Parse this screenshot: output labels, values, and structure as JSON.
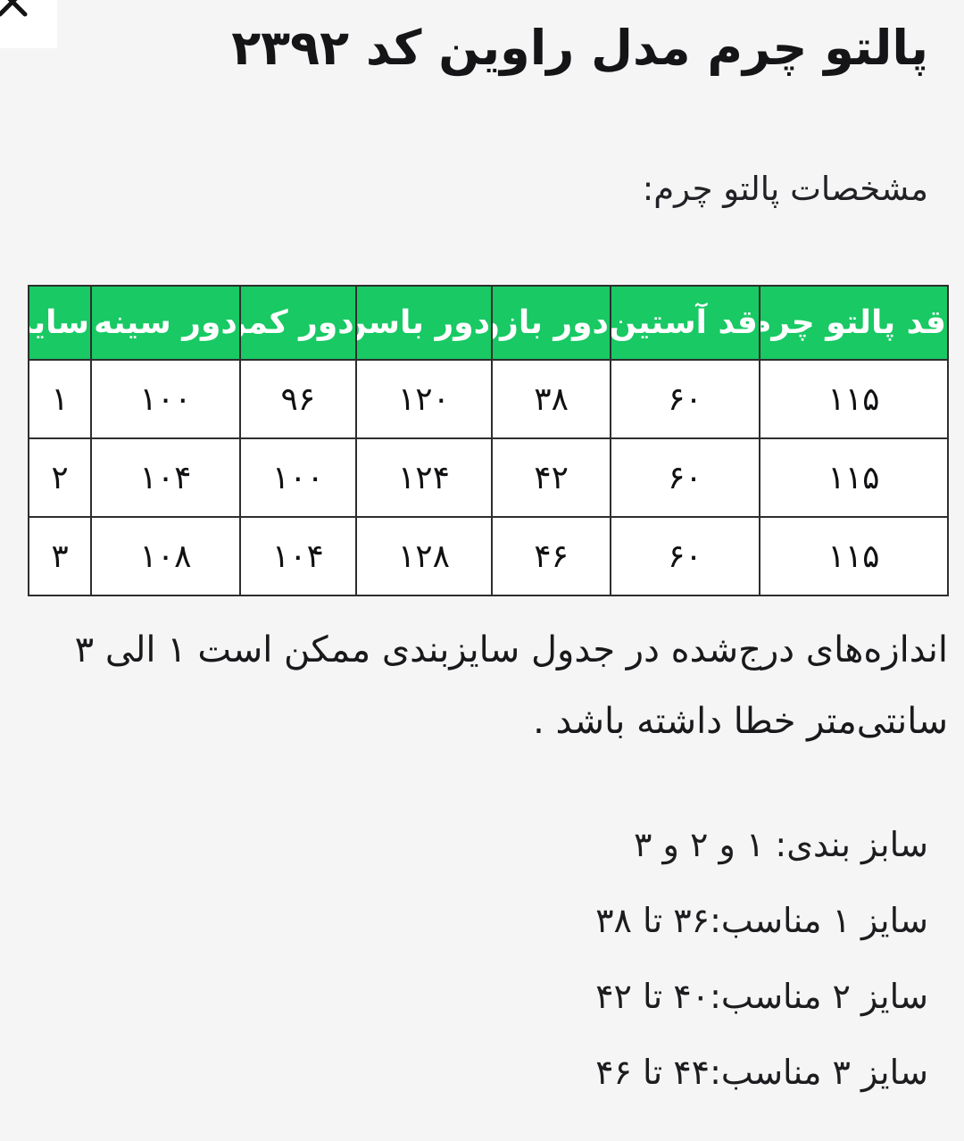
{
  "window": {
    "close_icon": "x-close"
  },
  "header": {
    "title": "پالتو چرم مدل راوین کد ۲۳۹۲"
  },
  "content": {
    "subtitle": "مشخصات پالتو چرم:",
    "note_lines": [
      "اندازه‌های درج‌شده در جدول سایزبندی ممکن است ۱ الی ۳",
      "سانتی‌متر خطا داشته باشد ."
    ],
    "size_guide": [
      "سابز بندی: ۱ و ۲ و ۳",
      "سایز ۱ مناسب:۳۶ تا ۳۸",
      "سایز ۲ مناسب:۴۰ تا ۴۲",
      "سایز ۳ مناسب:۴۴ تا ۴۶"
    ]
  },
  "table": {
    "headers": [
      "قد پالتو چرم",
      "قد آستین",
      "دور بازو",
      "دور باسن",
      "دور کمر",
      "دور سینه",
      "سایز"
    ],
    "rows": [
      [
        "۱۱۵",
        "۶۰",
        "۳۸",
        "۱۲۰",
        "۹۶",
        "۱۰۰",
        "۱"
      ],
      [
        "۱۱۵",
        "۶۰",
        "۴۲",
        "۱۲۴",
        "۱۰۰",
        "۱۰۴",
        "۲"
      ],
      [
        "۱۱۵",
        "۶۰",
        "۴۶",
        "۱۲۸",
        "۱۰۴",
        "۱۰۸",
        "۳"
      ]
    ]
  },
  "colors": {
    "header_green": "#18c964",
    "page_bg": "#f5f5f6",
    "table_border": "#2e2e2e"
  }
}
